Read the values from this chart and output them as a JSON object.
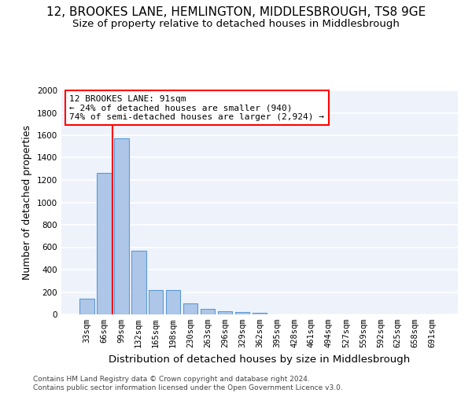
{
  "title": "12, BROOKES LANE, HEMLINGTON, MIDDLESBROUGH, TS8 9GE",
  "subtitle": "Size of property relative to detached houses in Middlesbrough",
  "xlabel": "Distribution of detached houses by size in Middlesbrough",
  "ylabel": "Number of detached properties",
  "bar_values": [
    140,
    1265,
    1575,
    565,
    220,
    220,
    95,
    50,
    30,
    20,
    15,
    0,
    0,
    0,
    0,
    0,
    0,
    0,
    0,
    0,
    0
  ],
  "bar_labels": [
    "33sqm",
    "66sqm",
    "99sqm",
    "132sqm",
    "165sqm",
    "198sqm",
    "230sqm",
    "263sqm",
    "296sqm",
    "329sqm",
    "362sqm",
    "395sqm",
    "428sqm",
    "461sqm",
    "494sqm",
    "527sqm",
    "559sqm",
    "592sqm",
    "625sqm",
    "658sqm",
    "691sqm"
  ],
  "bar_color": "#aec6e8",
  "bar_edge_color": "#5b9bd5",
  "vline_x": 1.5,
  "annotation_text": "12 BROOKES LANE: 91sqm\n← 24% of detached houses are smaller (940)\n74% of semi-detached houses are larger (2,924) →",
  "annotation_box_color": "white",
  "annotation_box_edge": "red",
  "vline_color": "red",
  "ylim": [
    0,
    2000
  ],
  "yticks": [
    0,
    200,
    400,
    600,
    800,
    1000,
    1200,
    1400,
    1600,
    1800,
    2000
  ],
  "footer": "Contains HM Land Registry data © Crown copyright and database right 2024.\nContains public sector information licensed under the Open Government Licence v3.0.",
  "background_color": "#eef2fb",
  "grid_color": "white",
  "title_fontsize": 11,
  "subtitle_fontsize": 9.5,
  "xlabel_fontsize": 9.5,
  "ylabel_fontsize": 9,
  "tick_fontsize": 7.5,
  "annotation_fontsize": 8,
  "footer_fontsize": 6.5
}
